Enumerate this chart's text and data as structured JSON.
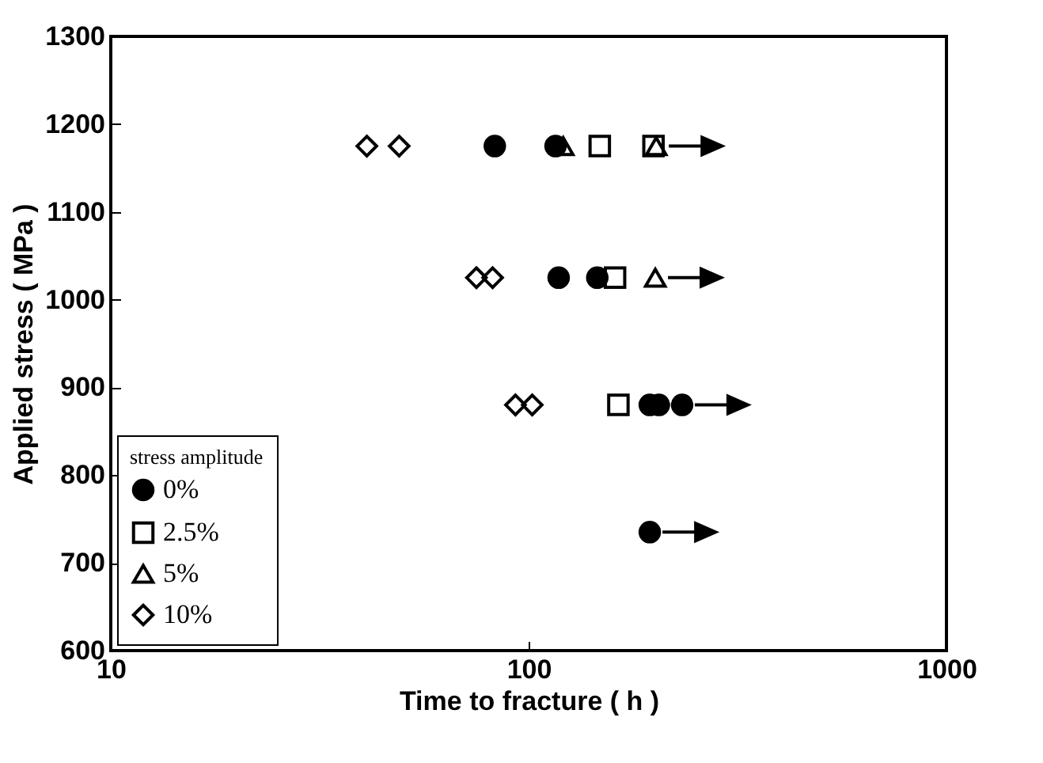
{
  "chart_data": {
    "type": "scatter",
    "xlabel": "Time to fracture ( h )",
    "ylabel": "Applied stress ( MPa )",
    "legend_title": "stress amplitude",
    "legend": "bottom left",
    "log": "x",
    "xlim": [
      10,
      1000
    ],
    "xticks": [
      10,
      100,
      1000
    ],
    "ylim": [
      600,
      1300
    ],
    "yticks": [
      600,
      700,
      800,
      900,
      1000,
      1100,
      1200,
      1300
    ],
    "grid": false,
    "series": [
      {
        "name": "0%",
        "color": "#000000",
        "marker": "circle",
        "x": [
          83,
          116,
          118,
          146,
          195,
          205,
          233,
          195
        ],
        "values": [
          1175,
          1175,
          1025,
          1025,
          880,
          880,
          880,
          735
        ]
      },
      {
        "name": "2.5%",
        "color": "#000000",
        "marker": "square",
        "x": [
          148,
          199,
          161,
          164
        ],
        "values": [
          1175,
          1175,
          1025,
          880
        ]
      },
      {
        "name": "5%",
        "color": "#000000",
        "marker": "triangle",
        "x": [
          121,
          202,
          201
        ],
        "values": [
          1175,
          1175,
          1025
        ]
      },
      {
        "name": "10%",
        "color": "#000000",
        "marker": "diamond",
        "x": [
          41,
          49,
          75,
          82,
          93,
          102
        ],
        "values": [
          1175,
          1175,
          1025,
          1025,
          880,
          880
        ]
      }
    ]
  }
}
